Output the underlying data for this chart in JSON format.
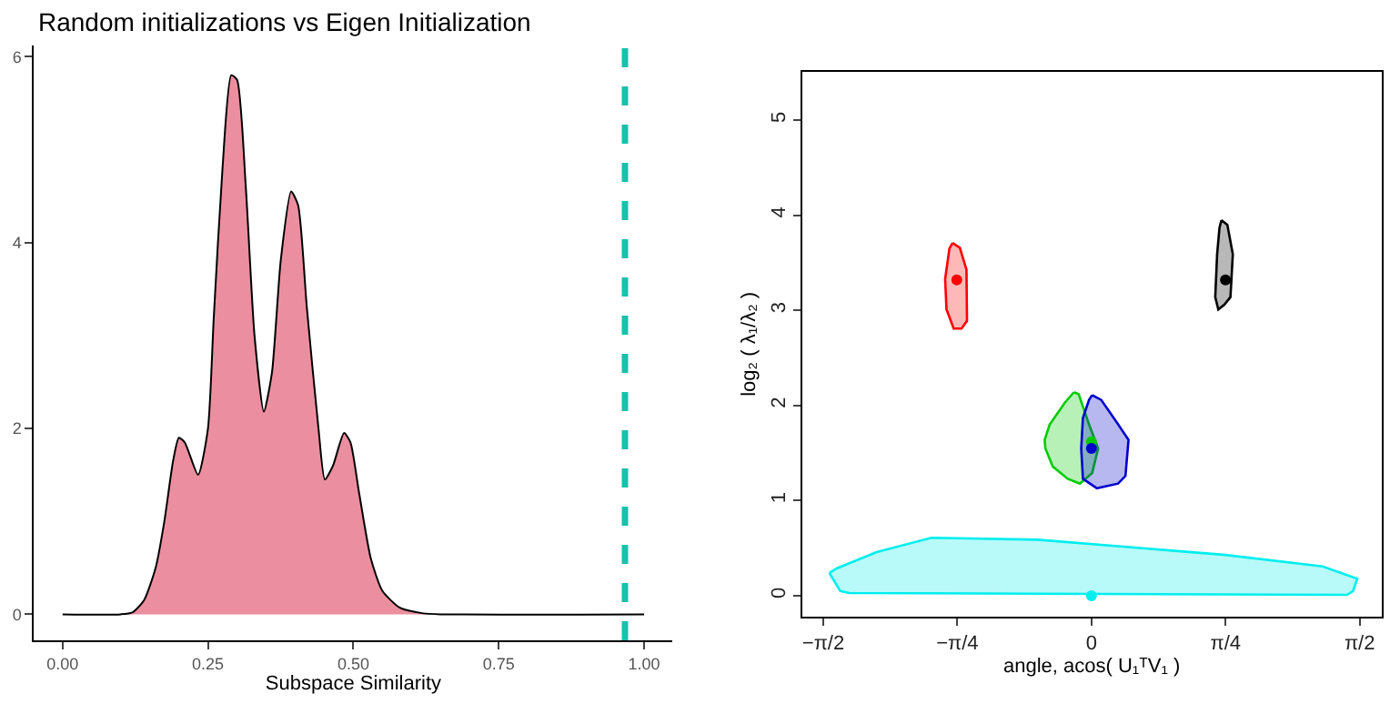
{
  "chart_data": [
    {
      "type": "area",
      "title": "Random initializations vs Eigen Initialization",
      "xlabel": "Subspace Similarity",
      "x": [
        0,
        0.1,
        0.12,
        0.14,
        0.16,
        0.175,
        0.19,
        0.2,
        0.21,
        0.233,
        0.25,
        0.26,
        0.275,
        0.29,
        0.3,
        0.315,
        0.33,
        0.346,
        0.36,
        0.375,
        0.393,
        0.405,
        0.42,
        0.44,
        0.451,
        0.465,
        0.484,
        0.495,
        0.51,
        0.53,
        0.55,
        0.58,
        0.62,
        0.65,
        1.0
      ],
      "series": [
        {
          "color": "#eb8fa0",
          "values": [
            0,
            0,
            0.02,
            0.15,
            0.5,
            1.0,
            1.65,
            1.9,
            1.85,
            1.5,
            2.0,
            3.2,
            4.8,
            5.8,
            5.75,
            4.6,
            3.0,
            2.18,
            2.6,
            3.8,
            4.55,
            4.4,
            3.3,
            2.0,
            1.45,
            1.6,
            1.95,
            1.85,
            1.3,
            0.6,
            0.25,
            0.07,
            0.01,
            0,
            0
          ]
        }
      ],
      "xlim": [
        -0.049,
        1.049
      ],
      "ylim": [
        -0.28,
        6.12
      ],
      "xticks": [
        {
          "value": 0,
          "label": "0.00"
        },
        {
          "value": 0.25,
          "label": "0.25"
        },
        {
          "value": 0.5,
          "label": "0.50"
        },
        {
          "value": 0.75,
          "label": "0.75"
        },
        {
          "value": 1,
          "label": "1.00"
        }
      ],
      "yticks": [
        0,
        2,
        4,
        6
      ],
      "ref_lines": [
        {
          "axis": "x",
          "value": 0.967,
          "color": "#1cbfae",
          "line_style": "dashed"
        }
      ]
    },
    {
      "type": "scatter",
      "xlabel": "angle, acos( U₁ᵀV₁ )",
      "ylabel": "log₂ ( λ₁/λ₂ )",
      "series": [
        {
          "type": "area",
          "color": "#ff0000",
          "x": [
            -0.814,
            -0.771,
            -0.732,
            -0.729,
            -0.761,
            -0.807,
            -0.849,
            -0.857,
            -0.832,
            -0.814
          ],
          "values": [
            3.71,
            3.66,
            3.43,
            2.89,
            2.81,
            2.81,
            3.01,
            3.33,
            3.65,
            3.71
          ]
        },
        {
          "type": "area",
          "color": "#000000",
          "x": [
            0.761,
            0.796,
            0.828,
            0.814,
            0.778,
            0.743,
            0.725,
            0.736,
            0.75,
            0.761
          ],
          "values": [
            3.95,
            3.9,
            3.59,
            3.14,
            3.06,
            3.01,
            3.14,
            3.59,
            3.87,
            3.95
          ]
        },
        {
          "type": "area",
          "color": "#00cc00",
          "x": [
            -0.103,
            -0.075,
            -0.014,
            0.039,
            0.004,
            -0.068,
            -0.139,
            -0.227,
            -0.27,
            -0.274,
            -0.245,
            -0.156,
            -0.103
          ],
          "values": [
            2.14,
            2.12,
            1.8,
            1.55,
            1.29,
            1.18,
            1.23,
            1.36,
            1.55,
            1.64,
            1.8,
            2.03,
            2.14
          ]
        },
        {
          "type": "area",
          "color": "#0000cc",
          "x": [
            0.004,
            0.057,
            0.146,
            0.217,
            0.199,
            0.156,
            0.032,
            -0.05,
            -0.06,
            -0.05,
            -0.014,
            0.004
          ],
          "values": [
            2.11,
            2.06,
            1.83,
            1.64,
            1.26,
            1.18,
            1.13,
            1.23,
            1.55,
            1.87,
            2.06,
            2.11
          ]
        },
        {
          "type": "area",
          "color": "#00eeee",
          "x": [
            -1.535,
            -1.471,
            -1.418,
            1.496,
            1.532,
            1.557,
            1.354,
            0.785,
            -0.316,
            -0.938,
            -1.258,
            -1.489,
            -1.535
          ],
          "values": [
            0.24,
            0.05,
            0.03,
            0.01,
            0.05,
            0.18,
            0.31,
            0.43,
            0.59,
            0.61,
            0.46,
            0.29,
            0.24
          ]
        },
        {
          "type": "scatter",
          "marker": "circle",
          "x": [
            -0.789,
            0.785,
            0,
            0,
            0
          ],
          "values": [
            3.32,
            3.32,
            1.62,
            1.55,
            0
          ],
          "colors": [
            "#ff0000",
            "#000000",
            "#00cc00",
            "#0000cc",
            "#00eeee"
          ]
        }
      ],
      "xlim": [
        -1.694,
        1.698
      ],
      "ylim": [
        -0.217,
        5.51
      ],
      "xticks": [
        {
          "value": -1.5708,
          "label": "−π/2"
        },
        {
          "value": -0.7854,
          "label": "−π/4"
        },
        0,
        {
          "value": 0.7854,
          "label": "π/4"
        },
        {
          "value": 1.5708,
          "label": "π/2"
        }
      ],
      "yticks": [
        0,
        1,
        2,
        3,
        4,
        5
      ]
    }
  ]
}
